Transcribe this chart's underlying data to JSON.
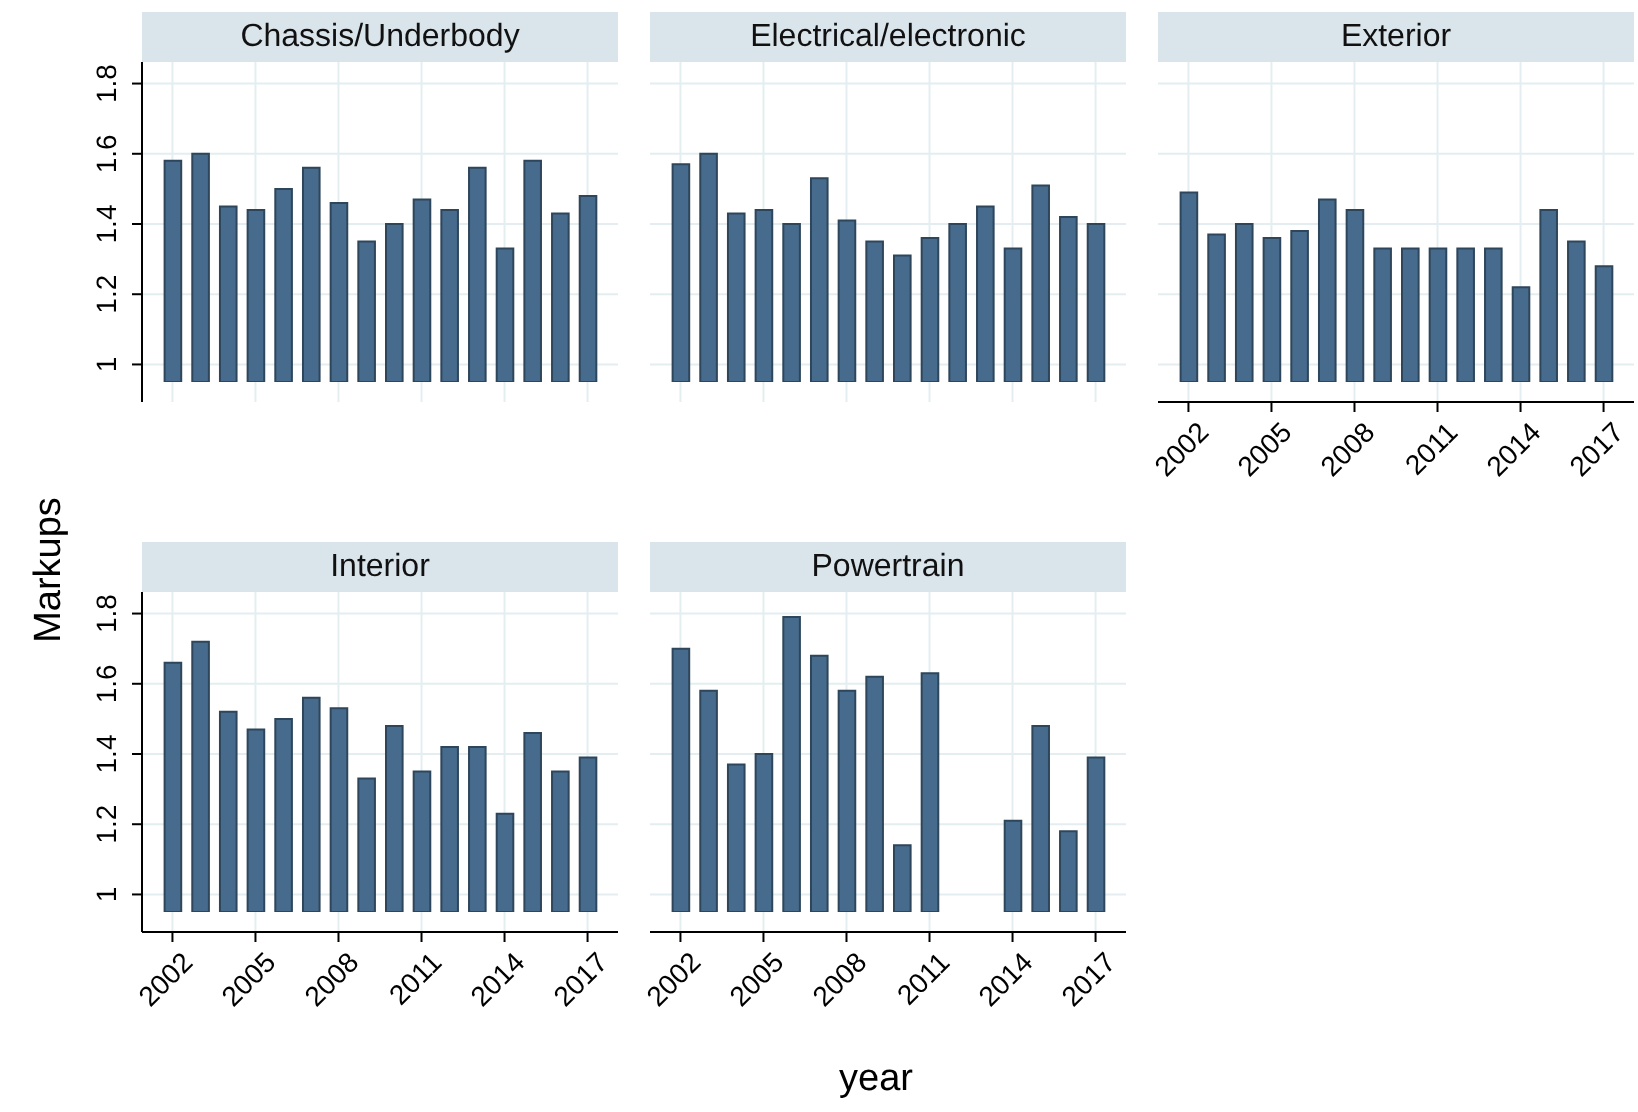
{
  "chart_data": [
    {
      "type": "bar",
      "title": "Chassis/Underbody",
      "x": [
        2002,
        2003,
        2004,
        2005,
        2006,
        2007,
        2008,
        2009,
        2010,
        2011,
        2012,
        2013,
        2014,
        2015,
        2016,
        2017
      ],
      "values": [
        1.58,
        1.6,
        1.45,
        1.44,
        1.5,
        1.56,
        1.46,
        1.35,
        1.4,
        1.47,
        1.44,
        1.56,
        1.33,
        1.58,
        1.43,
        1.48
      ],
      "color": "#476b8c",
      "xlim": [
        2000.9,
        2018.1
      ],
      "xticks": [
        2002,
        2005,
        2008,
        2011,
        2014,
        2017
      ],
      "ylim": [
        0.95,
        1.85
      ],
      "yticks": [
        1,
        1.2,
        1.4,
        1.6,
        1.8
      ],
      "grid": true,
      "tick_labels": "y"
    },
    {
      "type": "bar",
      "title": "Electrical/electronic",
      "x": [
        2002,
        2003,
        2004,
        2005,
        2006,
        2007,
        2008,
        2009,
        2010,
        2011,
        2012,
        2013,
        2014,
        2015,
        2016,
        2017
      ],
      "values": [
        1.57,
        1.6,
        1.43,
        1.44,
        1.4,
        1.53,
        1.41,
        1.35,
        1.31,
        1.36,
        1.4,
        1.45,
        1.33,
        1.51,
        1.42,
        1.4
      ],
      "color": "#476b8c",
      "xlim": [
        2000.9,
        2018.1
      ],
      "xticks": [
        2002,
        2005,
        2008,
        2011,
        2014,
        2017
      ],
      "ylim": [
        0.95,
        1.85
      ],
      "yticks": [
        1,
        1.2,
        1.4,
        1.6,
        1.8
      ],
      "grid": true,
      "tick_labels": false
    },
    {
      "type": "bar",
      "title": "Exterior",
      "x": [
        2002,
        2003,
        2004,
        2005,
        2006,
        2007,
        2008,
        2009,
        2010,
        2011,
        2012,
        2013,
        2014,
        2015,
        2016,
        2017
      ],
      "values": [
        1.49,
        1.37,
        1.4,
        1.36,
        1.38,
        1.47,
        1.44,
        1.33,
        1.33,
        1.33,
        1.33,
        1.33,
        1.22,
        1.44,
        1.35,
        1.28
      ],
      "color": "#476b8c",
      "xlim": [
        2000.9,
        2018.1
      ],
      "xticks": [
        2002,
        2005,
        2008,
        2011,
        2014,
        2017
      ],
      "ylim": [
        0.95,
        1.85
      ],
      "yticks": [
        1,
        1.2,
        1.4,
        1.6,
        1.8
      ],
      "grid": true,
      "tick_labels": "x"
    },
    {
      "type": "bar",
      "title": "Interior",
      "ylabel": "Markups",
      "x": [
        2002,
        2003,
        2004,
        2005,
        2006,
        2007,
        2008,
        2009,
        2010,
        2011,
        2012,
        2013,
        2014,
        2015,
        2016,
        2017
      ],
      "values": [
        1.66,
        1.72,
        1.52,
        1.47,
        1.5,
        1.56,
        1.53,
        1.33,
        1.48,
        1.35,
        1.42,
        1.42,
        1.23,
        1.46,
        1.35,
        1.39
      ],
      "color": "#476b8c",
      "xlim": [
        2000.9,
        2018.1
      ],
      "xticks": [
        2002,
        2005,
        2008,
        2011,
        2014,
        2017
      ],
      "ylim": [
        0.95,
        1.85
      ],
      "yticks": [
        1,
        1.2,
        1.4,
        1.6,
        1.8
      ],
      "grid": true
    },
    {
      "type": "bar",
      "title": "Powertrain",
      "xlabel": "year",
      "x": [
        2002,
        2003,
        2004,
        2005,
        2006,
        2007,
        2008,
        2009,
        2010,
        2011,
        2012,
        2013,
        2014,
        2015,
        2016,
        2017
      ],
      "values": [
        1.7,
        1.58,
        1.37,
        1.4,
        1.79,
        1.68,
        1.58,
        1.62,
        1.14,
        1.63,
        null,
        null,
        1.21,
        1.48,
        1.18,
        1.39
      ],
      "color": "#476b8c",
      "xlim": [
        2000.9,
        2018.1
      ],
      "xticks": [
        2002,
        2005,
        2008,
        2011,
        2014,
        2017
      ],
      "ylim": [
        0.95,
        1.85
      ],
      "yticks": [
        1,
        1.2,
        1.4,
        1.6,
        1.8
      ],
      "grid": true,
      "tick_labels": "x"
    }
  ]
}
